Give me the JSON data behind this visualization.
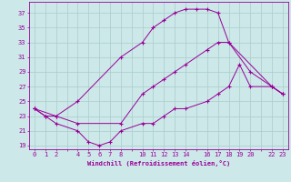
{
  "xlabel": "Windchill (Refroidissement éolien,°C)",
  "bg_color": "#cce8e8",
  "grid_color": "#aacccc",
  "line_color": "#990099",
  "curve_top_x": [
    0,
    1,
    2,
    4,
    8,
    10,
    11,
    12,
    13,
    14,
    15,
    16,
    17,
    18,
    22,
    23
  ],
  "curve_top_y": [
    24,
    23,
    23,
    25,
    31,
    33,
    35,
    36,
    37,
    37.5,
    37.5,
    37.5,
    37,
    33,
    27,
    26
  ],
  "curve_mid_x": [
    0,
    2,
    4,
    8,
    10,
    11,
    12,
    13,
    14,
    16,
    17,
    18,
    20,
    22,
    23
  ],
  "curve_mid_y": [
    24,
    23,
    22,
    22,
    26,
    27,
    28,
    29,
    30,
    32,
    33,
    33,
    29,
    27,
    26
  ],
  "curve_bot_x": [
    0,
    1,
    2,
    4,
    5,
    6,
    7,
    8,
    10,
    11,
    12,
    13,
    14,
    16,
    17,
    18,
    19,
    20,
    22,
    23
  ],
  "curve_bot_y": [
    24,
    23,
    22,
    21,
    19.5,
    19,
    19.5,
    21,
    22,
    22,
    23,
    24,
    24,
    25,
    26,
    27,
    30,
    27,
    27,
    26
  ],
  "yticks": [
    19,
    21,
    23,
    25,
    27,
    29,
    31,
    33,
    35,
    37
  ],
  "xtick_positions": [
    0,
    1,
    2,
    3,
    4,
    5,
    6,
    7,
    8,
    9,
    10,
    11,
    12,
    13,
    14,
    15,
    16,
    17,
    18,
    19,
    20,
    21,
    22,
    23
  ],
  "xtick_labels": [
    "0",
    "1",
    "2",
    "",
    "4",
    "5",
    "6",
    "7",
    "8",
    "",
    "10",
    "11",
    "12",
    "13",
    "14",
    "",
    "16",
    "17",
    "18",
    "19",
    "20",
    "",
    "22",
    "23"
  ],
  "ylim": [
    18.5,
    38.5
  ],
  "xlim": [
    -0.5,
    23.5
  ],
  "figsize": [
    3.2,
    2.0
  ],
  "dpi": 100
}
